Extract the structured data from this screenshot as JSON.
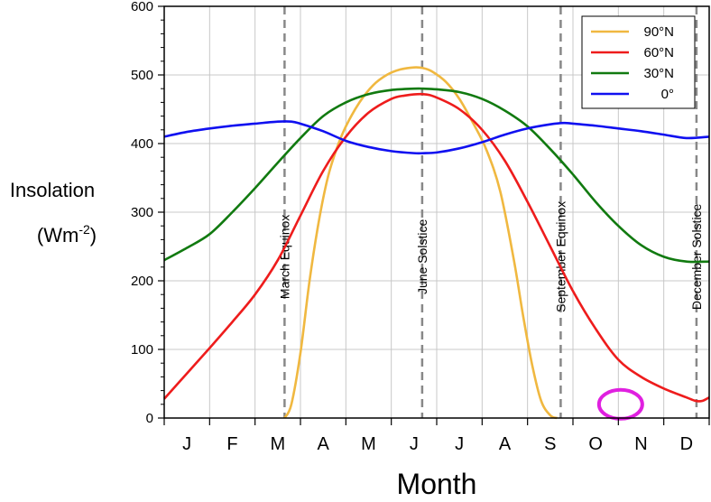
{
  "chart_data": {
    "type": "line",
    "xlabel": "Month",
    "ylabel_line1": "Insolation",
    "ylabel_unit_base": "(Wm",
    "ylabel_unit_sup": "-2",
    "ylabel_unit_close": ")",
    "ylim": [
      0,
      600
    ],
    "yticks": [
      0,
      100,
      200,
      300,
      400,
      500,
      600
    ],
    "xlim": [
      0,
      12
    ],
    "months": [
      "J",
      "F",
      "M",
      "A",
      "M",
      "J",
      "J",
      "A",
      "S",
      "O",
      "N",
      "D"
    ],
    "grid": true,
    "legend_position": "top-right",
    "events": [
      {
        "label": "March Equinox",
        "x": 2.65
      },
      {
        "label": "June Solstice",
        "x": 5.68
      },
      {
        "label": "September Equinox",
        "x": 8.73
      },
      {
        "label": "December Solstice",
        "x": 11.72
      }
    ],
    "series": [
      {
        "name": "90°N",
        "color": "#f0b840",
        "x": [
          2.65,
          2.8,
          3.0,
          3.2,
          3.4,
          3.6,
          3.8,
          4.0,
          4.3,
          4.6,
          4.9,
          5.2,
          5.5,
          5.7,
          5.9,
          6.2,
          6.5,
          6.8,
          7.1,
          7.4,
          7.7,
          7.9,
          8.1,
          8.3,
          8.5,
          8.65
        ],
        "values": [
          0,
          20,
          95,
          200,
          285,
          350,
          393,
          425,
          460,
          485,
          500,
          508,
          511,
          510,
          505,
          490,
          465,
          430,
          390,
          330,
          230,
          150,
          78,
          25,
          4,
          0
        ]
      },
      {
        "name": "60°N",
        "color": "#ee1c1c",
        "x": [
          0,
          0.5,
          1.0,
          1.5,
          2.0,
          2.5,
          3.0,
          3.5,
          4.0,
          4.5,
          5.0,
          5.3,
          5.7,
          6.0,
          6.5,
          7.0,
          7.5,
          8.0,
          8.5,
          9.0,
          9.5,
          10.0,
          10.5,
          11.0,
          11.5,
          11.7,
          11.85,
          12.0
        ],
        "values": [
          28,
          65,
          102,
          140,
          180,
          230,
          295,
          360,
          410,
          445,
          465,
          470,
          472,
          467,
          450,
          420,
          375,
          315,
          250,
          185,
          130,
          85,
          60,
          43,
          30,
          25,
          25,
          30
        ]
      },
      {
        "name": "30°N",
        "color": "#117a10",
        "x": [
          0,
          0.5,
          1.0,
          1.5,
          2.0,
          2.5,
          3.0,
          3.5,
          4.0,
          4.5,
          5.0,
          5.5,
          5.7,
          6.0,
          6.5,
          7.0,
          7.5,
          8.0,
          8.5,
          9.0,
          9.5,
          10.0,
          10.5,
          11.0,
          11.5,
          12.0
        ],
        "values": [
          230,
          248,
          268,
          300,
          335,
          372,
          408,
          440,
          460,
          472,
          478,
          480,
          480,
          479,
          475,
          465,
          448,
          425,
          392,
          355,
          315,
          280,
          252,
          235,
          228,
          228
        ]
      },
      {
        "name": "0°",
        "color": "#1010f0",
        "x": [
          0,
          0.5,
          1.0,
          1.5,
          2.0,
          2.5,
          2.8,
          3.0,
          3.5,
          4.0,
          4.5,
          5.0,
          5.5,
          5.7,
          6.0,
          6.5,
          7.0,
          7.5,
          8.0,
          8.5,
          8.8,
          9.0,
          9.5,
          10.0,
          10.5,
          11.0,
          11.5,
          12.0
        ],
        "values": [
          410,
          417,
          422,
          426,
          429,
          432,
          432,
          429,
          418,
          404,
          395,
          389,
          386,
          386,
          387,
          393,
          402,
          413,
          422,
          428,
          430,
          429,
          426,
          422,
          418,
          413,
          408,
          410
        ]
      }
    ],
    "annotation_circle": {
      "x": 10.05,
      "y": 20,
      "color": "#e020e0"
    }
  }
}
